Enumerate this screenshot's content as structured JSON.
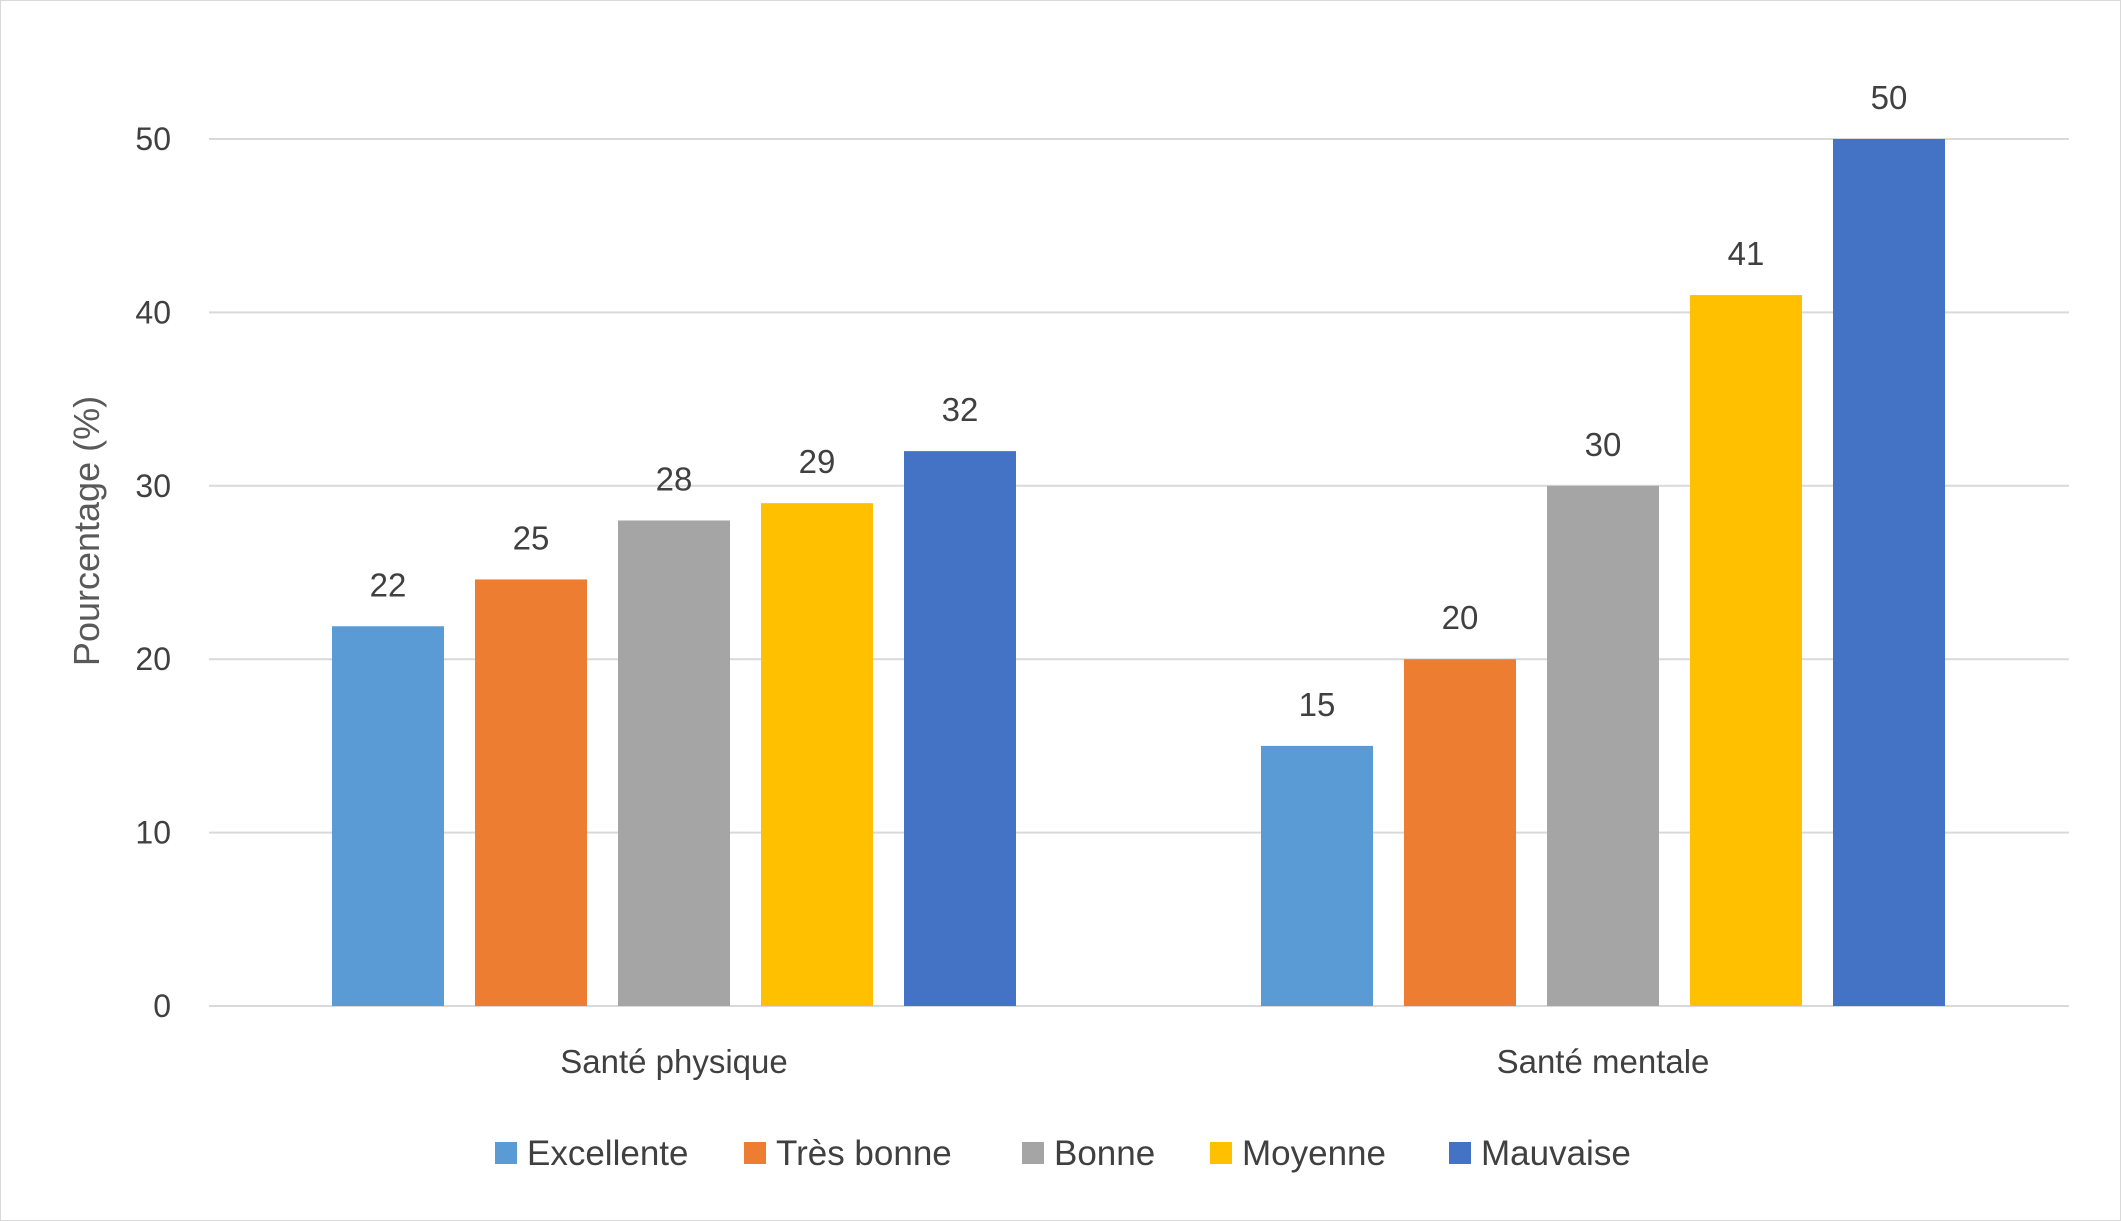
{
  "chart_data": {
    "type": "bar",
    "title": "",
    "xlabel": "",
    "ylabel": "Pourcentage (%)",
    "ylim": [
      0,
      50
    ],
    "yticks": [
      0,
      10,
      20,
      30,
      40,
      50
    ],
    "grid": true,
    "legend_position": "bottom",
    "categories": [
      "Santé physique",
      "Santé mentale"
    ],
    "series": [
      {
        "name": "Excellente",
        "color": "#5B9BD5",
        "values": [
          22,
          15
        ]
      },
      {
        "name": "Très bonne",
        "color": "#ED7D31",
        "values": [
          25,
          20
        ]
      },
      {
        "name": "Bonne",
        "color": "#A5A5A5",
        "values": [
          28,
          30
        ]
      },
      {
        "name": "Moyenne",
        "color": "#FFC000",
        "values": [
          29,
          41
        ]
      },
      {
        "name": "Mauvaise",
        "color": "#4472C4",
        "values": [
          32,
          50
        ]
      }
    ],
    "plotted_values": [
      [
        21.9,
        15
      ],
      [
        24.6,
        20
      ],
      [
        28,
        30
      ],
      [
        29,
        41
      ],
      [
        32,
        50
      ]
    ]
  }
}
